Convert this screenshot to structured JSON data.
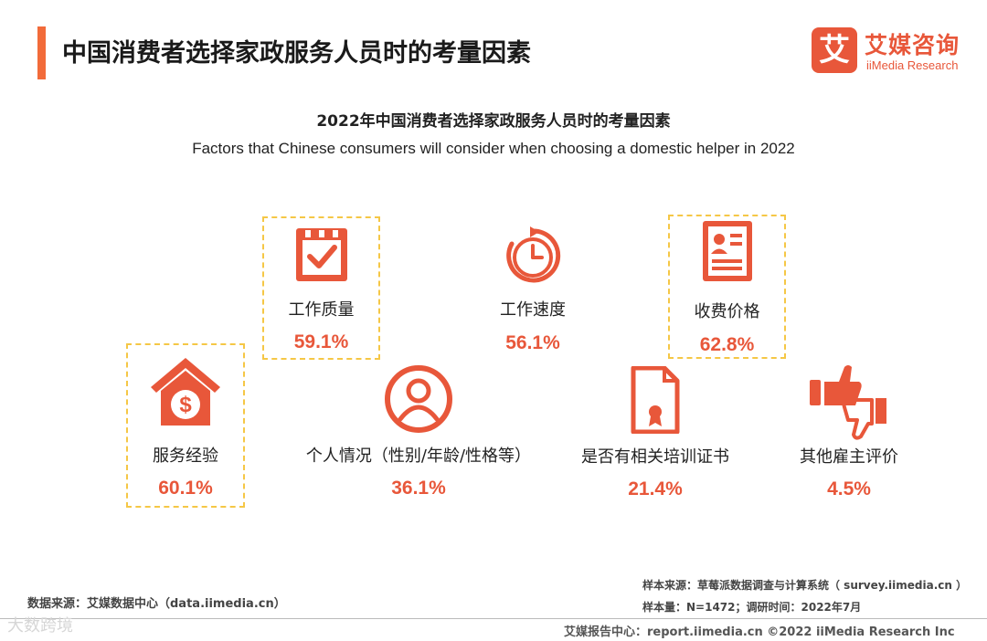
{
  "header": {
    "title": "中国消费者选择家政服务人员时的考量因素",
    "logo_mark": "艾",
    "logo_cn": "艾媒咨询",
    "logo_en": "iiMedia Research"
  },
  "chart_data": {
    "type": "table",
    "title": "2022年中国消费者选择家政服务人员时的考量因素",
    "subtitle": "Factors that Chinese consumers will consider when choosing a domestic helper in 2022",
    "unit": "%",
    "categories": [
      "工作质量",
      "工作速度",
      "收费价格",
      "服务经验",
      "个人情况（性别/年龄/性格等）",
      "是否有相关培训证书",
      "其他雇主评价"
    ],
    "values": [
      59.1,
      56.1,
      62.8,
      60.1,
      36.1,
      21.4,
      4.5
    ],
    "highlighted": [
      "工作质量",
      "收费价格",
      "服务经验"
    ],
    "items": [
      {
        "label": "工作质量",
        "value": "59.1%",
        "icon": "checklist-icon"
      },
      {
        "label": "工作速度",
        "value": "56.1%",
        "icon": "clock-icon"
      },
      {
        "label": "收费价格",
        "value": "62.8%",
        "icon": "id-card-icon"
      },
      {
        "label": "服务经验",
        "value": "60.1%",
        "icon": "house-dollar-icon"
      },
      {
        "label": "个人情况（性别/年龄/性格等）",
        "value": "36.1%",
        "icon": "person-icon"
      },
      {
        "label": "是否有相关培训证书",
        "value": "21.4%",
        "icon": "certificate-icon"
      },
      {
        "label": "其他雇主评价",
        "value": "4.5%",
        "icon": "thumbs-icon"
      }
    ]
  },
  "sources": {
    "data_source": "数据来源：艾媒数据中心（data.iimedia.cn）",
    "sample_source": "样本来源：草莓派数据调查与计算系统（ survey.iimedia.cn ）",
    "sample_size": "样本量：N=1472；调研时间：2022年7月"
  },
  "footer": {
    "text": "艾媒报告中心：report.iimedia.cn   ©2022  iiMedia Research  Inc",
    "watermark": "大数跨境"
  },
  "colors": {
    "accent": "#e8573a",
    "highlight_border": "#f5c746"
  }
}
